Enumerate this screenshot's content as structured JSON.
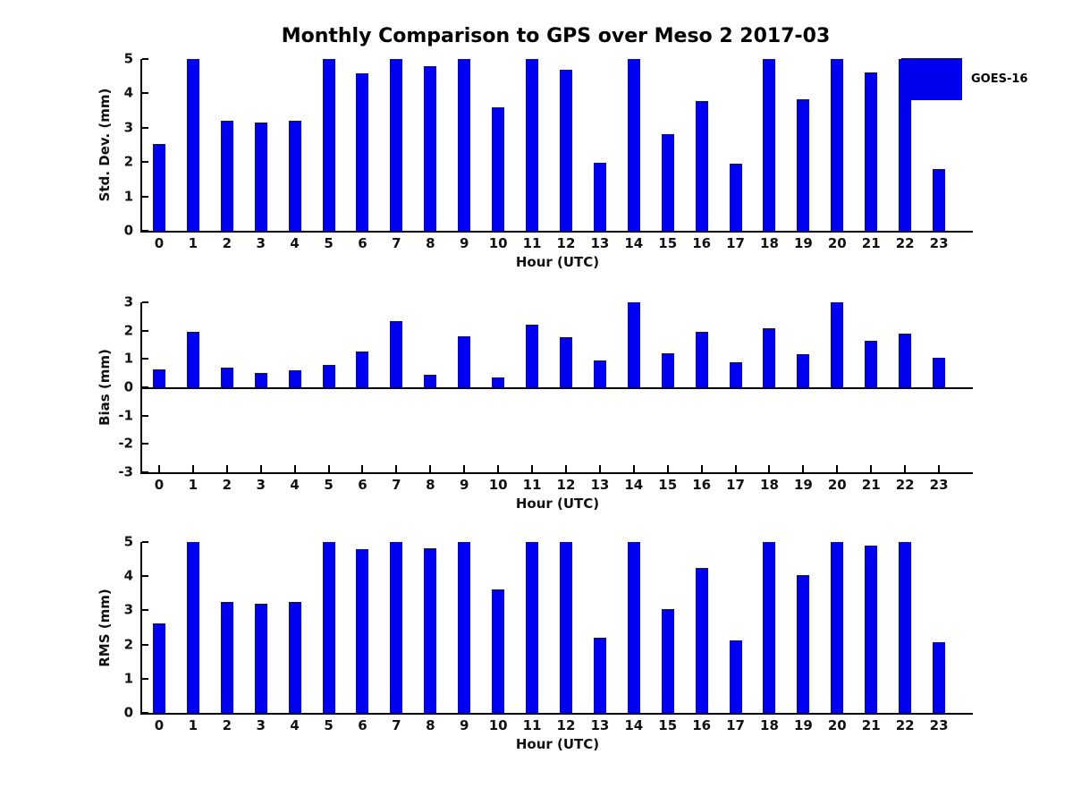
{
  "figure": {
    "title": "Monthly Comparison to GPS over Meso 2 2017-03"
  },
  "legend": {
    "label": "GOES-16",
    "position": "top-right"
  },
  "colors": {
    "bar": "#0000f0",
    "axis": "#000000",
    "text": "#111111",
    "background": "#ffffff"
  },
  "chart_data": [
    {
      "type": "bar",
      "name": "std-dev",
      "ylabel": "Std. Dev. (mm)",
      "xlabel": "Hour (UTC)",
      "ylim": [
        0,
        5
      ],
      "yticks": [
        0,
        1,
        2,
        3,
        4,
        5
      ],
      "grid": false,
      "categories": [
        0,
        1,
        2,
        3,
        4,
        5,
        6,
        7,
        8,
        9,
        10,
        11,
        12,
        13,
        14,
        15,
        16,
        17,
        18,
        19,
        20,
        21,
        22,
        23
      ],
      "values": [
        2.52,
        5,
        3.2,
        3.15,
        3.2,
        5,
        4.58,
        5,
        4.78,
        5,
        3.6,
        5,
        4.68,
        1.97,
        5,
        2.8,
        3.78,
        1.95,
        5,
        3.84,
        5,
        4.62,
        5,
        1.8
      ]
    },
    {
      "type": "bar",
      "name": "bias",
      "ylabel": "Bias (mm)",
      "xlabel": "Hour (UTC)",
      "ylim": [
        -3,
        3
      ],
      "yticks": [
        -3,
        -2,
        -1,
        0,
        1,
        2,
        3
      ],
      "grid": false,
      "categories": [
        0,
        1,
        2,
        3,
        4,
        5,
        6,
        7,
        8,
        9,
        10,
        11,
        12,
        13,
        14,
        15,
        16,
        17,
        18,
        19,
        20,
        21,
        22,
        23
      ],
      "values": [
        0.63,
        1.97,
        0.68,
        0.5,
        0.6,
        0.8,
        1.25,
        2.35,
        0.43,
        1.8,
        0.35,
        2.2,
        1.76,
        0.94,
        3,
        1.2,
        1.97,
        0.87,
        2.1,
        1.18,
        3,
        1.63,
        1.88,
        1.03
      ]
    },
    {
      "type": "bar",
      "name": "rms",
      "ylabel": "RMS (mm)",
      "xlabel": "Hour (UTC)",
      "ylim": [
        0,
        5
      ],
      "yticks": [
        0,
        1,
        2,
        3,
        4,
        5
      ],
      "grid": false,
      "categories": [
        0,
        1,
        2,
        3,
        4,
        5,
        6,
        7,
        8,
        9,
        10,
        11,
        12,
        13,
        14,
        15,
        16,
        17,
        18,
        19,
        20,
        21,
        22,
        23
      ],
      "values": [
        2.62,
        5,
        3.25,
        3.2,
        3.25,
        5,
        4.78,
        5,
        4.83,
        5,
        3.62,
        5,
        5,
        2.2,
        5,
        3.03,
        4.23,
        2.12,
        5,
        4.03,
        5,
        4.9,
        5,
        2.08
      ]
    }
  ]
}
